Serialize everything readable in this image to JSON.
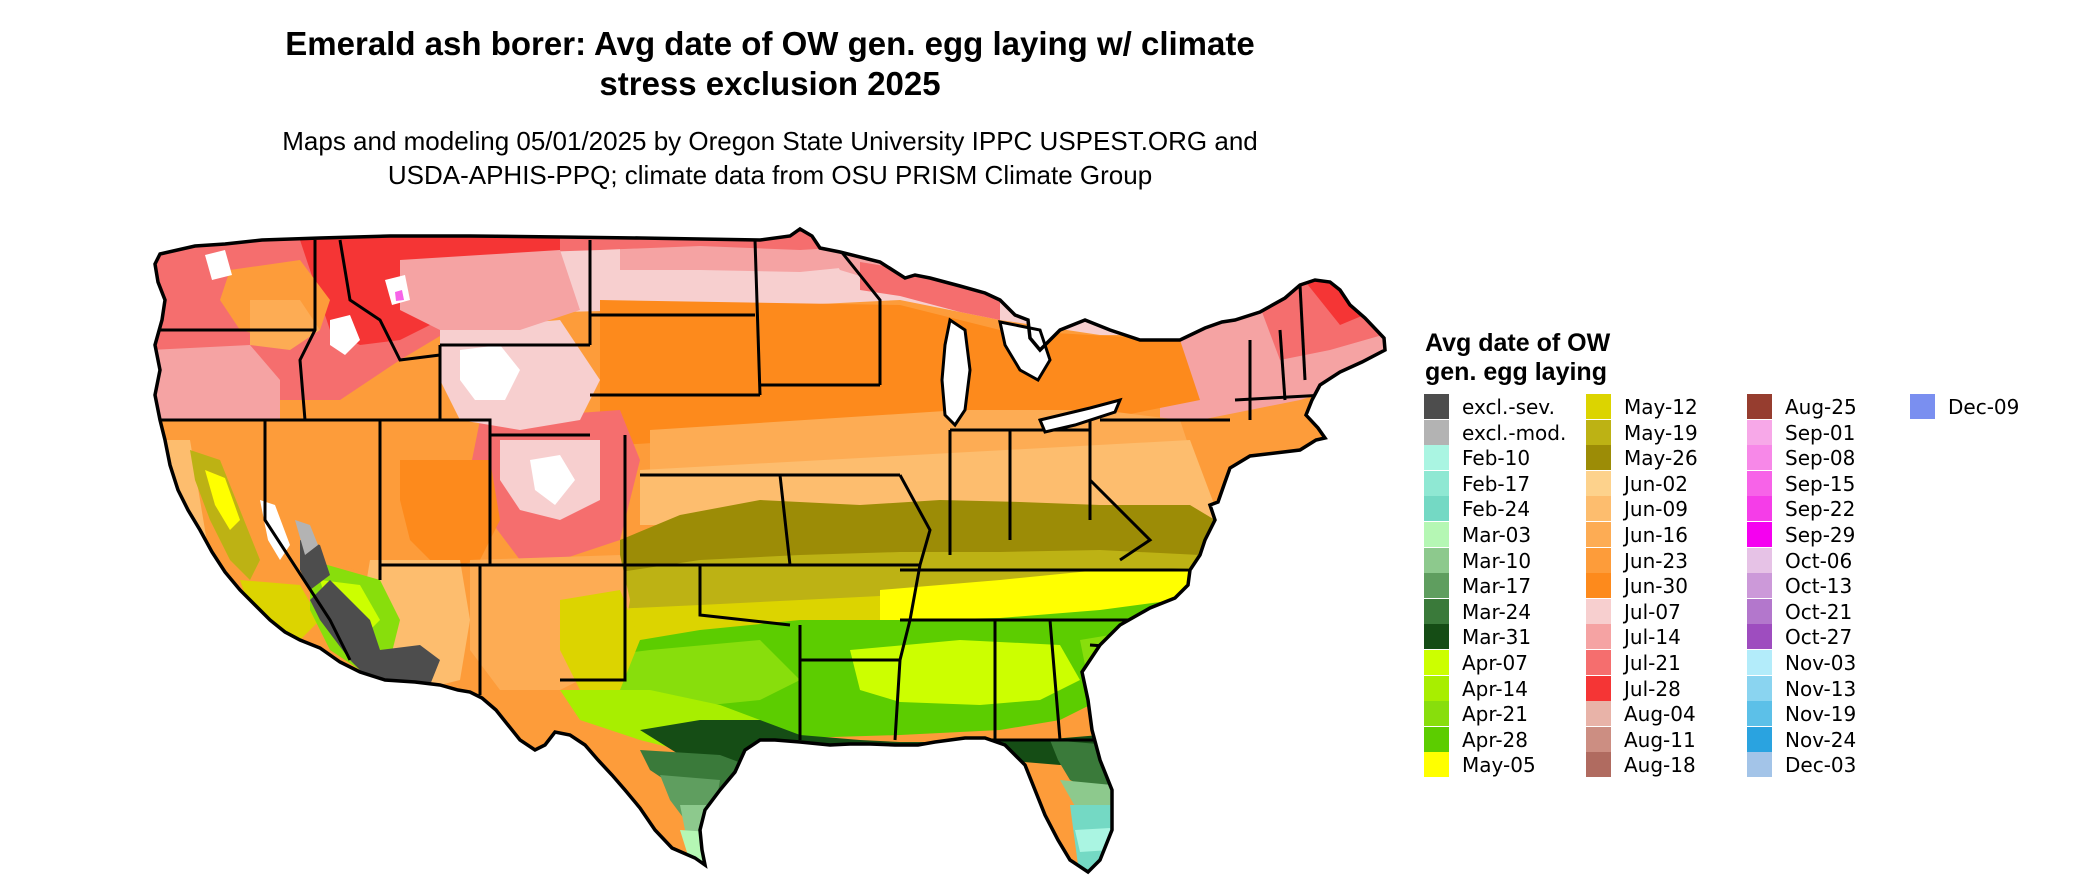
{
  "title": {
    "line1": "Emerald ash borer: Avg date of OW gen. egg laying w/ climate",
    "line2": "stress exclusion 2025"
  },
  "subtitle": {
    "line1": "Maps and modeling 05/01/2025 by Oregon State University IPPC USPEST.ORG and",
    "line2": "USDA-APHIS-PPQ; climate data from OSU PRISM Climate Group"
  },
  "legend": {
    "title_line1": "Avg date of OW",
    "title_line2": "gen. egg laying",
    "columns": [
      [
        {
          "label": "excl.-sev.",
          "color": "#4d4d4d"
        },
        {
          "label": "excl.-mod.",
          "color": "#b3b3b3"
        },
        {
          "label": "Feb-10",
          "color": "#aaf5e2"
        },
        {
          "label": "Feb-17",
          "color": "#8fe8d3"
        },
        {
          "label": "Feb-24",
          "color": "#74d9c4"
        },
        {
          "label": "Mar-03",
          "color": "#b5f7b4"
        },
        {
          "label": "Mar-10",
          "color": "#8dc98d"
        },
        {
          "label": "Mar-17",
          "color": "#5f9e5f"
        },
        {
          "label": "Mar-24",
          "color": "#3a7a3a"
        },
        {
          "label": "Mar-31",
          "color": "#154d15"
        },
        {
          "label": "Apr-07",
          "color": "#ccff00"
        },
        {
          "label": "Apr-14",
          "color": "#a8ee00"
        },
        {
          "label": "Apr-21",
          "color": "#88de0c"
        },
        {
          "label": "Apr-28",
          "color": "#5ccd00"
        },
        {
          "label": "May-05",
          "color": "#ffff00"
        }
      ],
      [
        {
          "label": "May-12",
          "color": "#dcd400"
        },
        {
          "label": "May-19",
          "color": "#bdb214"
        },
        {
          "label": "May-26",
          "color": "#9c8c06"
        },
        {
          "label": "Jun-02",
          "color": "#fdd28c"
        },
        {
          "label": "Jun-09",
          "color": "#fdbd6e"
        },
        {
          "label": "Jun-16",
          "color": "#fdac54"
        },
        {
          "label": "Jun-23",
          "color": "#fd9c3a"
        },
        {
          "label": "Jun-30",
          "color": "#fd8a1c"
        },
        {
          "label": "Jul-07",
          "color": "#f7cfcf"
        },
        {
          "label": "Jul-14",
          "color": "#f5a3a3"
        },
        {
          "label": "Jul-21",
          "color": "#f56e6e"
        },
        {
          "label": "Jul-28",
          "color": "#f53535"
        },
        {
          "label": "Aug-04",
          "color": "#e8b3a8"
        },
        {
          "label": "Aug-11",
          "color": "#cc8e82"
        },
        {
          "label": "Aug-18",
          "color": "#b06b60"
        }
      ],
      [
        {
          "label": "Aug-25",
          "color": "#963d2f"
        },
        {
          "label": "Sep-01",
          "color": "#f7a8e8"
        },
        {
          "label": "Sep-08",
          "color": "#f788e8"
        },
        {
          "label": "Sep-15",
          "color": "#f763e8"
        },
        {
          "label": "Sep-22",
          "color": "#f53de8"
        },
        {
          "label": "Sep-29",
          "color": "#f500f0"
        },
        {
          "label": "Oct-06",
          "color": "#e6c2e6"
        },
        {
          "label": "Oct-13",
          "color": "#cc99d9"
        },
        {
          "label": "Oct-21",
          "color": "#b377cc"
        },
        {
          "label": "Oct-27",
          "color": "#9e4dbf"
        },
        {
          "label": "Nov-03",
          "color": "#b3ecfa"
        },
        {
          "label": "Nov-13",
          "color": "#8ad4f0"
        },
        {
          "label": "Nov-19",
          "color": "#5cc0e8"
        },
        {
          "label": "Nov-24",
          "color": "#2aa3e0"
        },
        {
          "label": "Dec-03",
          "color": "#a3c4e8"
        }
      ],
      [
        {
          "label": "Dec-09",
          "color": "#7a8ff0"
        }
      ]
    ]
  },
  "map": {
    "colors": {
      "exclSev": "#4d4d4d",
      "exclMod": "#b3b3b3",
      "feb10": "#aaf5e2",
      "feb24": "#74d9c4",
      "mar03": "#b5f7b4",
      "mar10": "#8dc98d",
      "mar17": "#5f9e5f",
      "mar24": "#3a7a3a",
      "mar31": "#154d15",
      "apr07": "#ccff00",
      "apr14": "#a8ee00",
      "apr21": "#88de0c",
      "apr28": "#5ccd00",
      "may05": "#ffff00",
      "may12": "#dcd400",
      "may19": "#bdb214",
      "may26": "#9c8c06",
      "jun02": "#fdd28c",
      "jun09": "#fdbd6e",
      "jun16": "#fdac54",
      "jun23": "#fd9c3a",
      "jun30": "#fd8a1c",
      "jul07": "#f7cfcf",
      "jul14": "#f5a3a3",
      "jul21": "#f56e6e",
      "jul28": "#f53535",
      "sep15": "#f763e8",
      "exclWhite": "#ffffff"
    }
  }
}
